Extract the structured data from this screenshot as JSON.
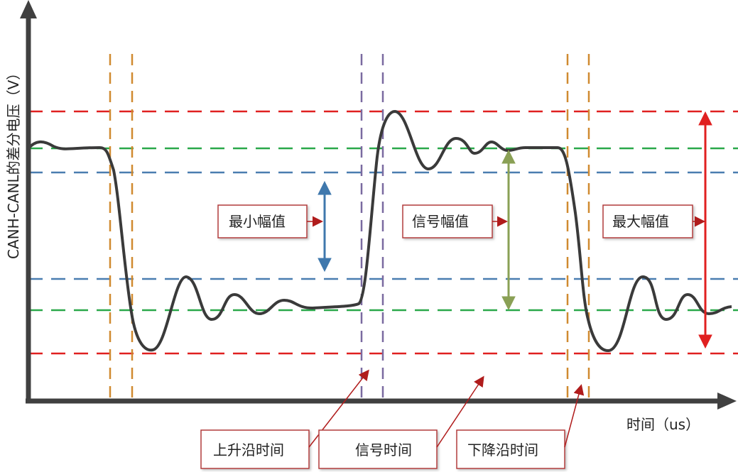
{
  "axes": {
    "y_label": "CANH-CANL的差分电压（V）",
    "x_label": "时间（us）"
  },
  "annotations": {
    "min_amplitude": "最小幅值",
    "signal_amplitude": "信号幅值",
    "max_amplitude": "最大幅值",
    "rise_time": "上升沿时间",
    "signal_time": "信号时间",
    "fall_time": "下降沿时间"
  },
  "colors": {
    "max_level": "#e02020",
    "nominal_level": "#2aa84a",
    "min_level": "#4a7db0",
    "edge_markers": "#d08a30",
    "signal_markers": "#7a6aa0",
    "waveform": "#3a3a3a",
    "axis": "#404040",
    "callout": "#b01c1c"
  }
}
